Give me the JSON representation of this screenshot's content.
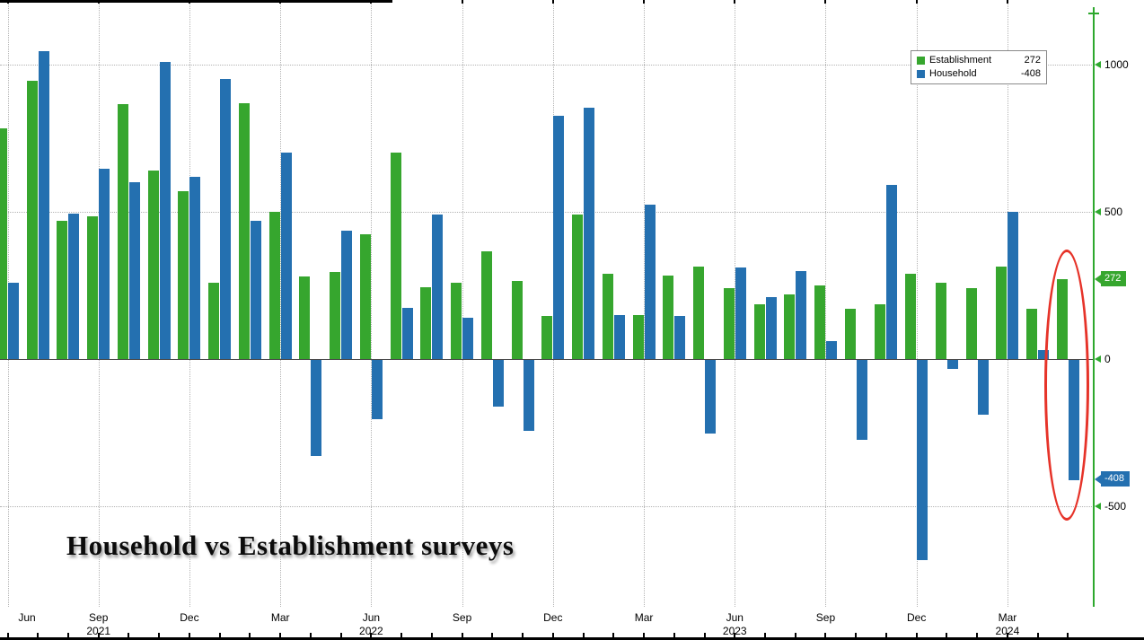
{
  "title": "Household vs Establishment surveys",
  "colors": {
    "establishment": "#36a62e",
    "household": "#2470b0",
    "axis": "#2da82d",
    "grid": "#b3b3b3",
    "highlight": "#e63329"
  },
  "legend": {
    "items": [
      {
        "label": "Establishment",
        "value": "272",
        "series": "establishment"
      },
      {
        "label": "Household",
        "value": "-408",
        "series": "household"
      }
    ]
  },
  "y_axis": {
    "ticks": [
      {
        "label": "1000",
        "value": 1000
      },
      {
        "label": "500",
        "value": 500
      },
      {
        "label": "0",
        "value": 0
      },
      {
        "label": "-500",
        "value": -500
      }
    ],
    "badges": [
      {
        "label": "272",
        "value": 272,
        "series": "establishment"
      },
      {
        "label": "-408",
        "value": -408,
        "series": "household"
      }
    ]
  },
  "x_axis": {
    "ticks": [
      {
        "index": 0,
        "label": "Jun"
      },
      {
        "index": 3,
        "label": "Sep",
        "year": "2021"
      },
      {
        "index": 6,
        "label": "Dec"
      },
      {
        "index": 9,
        "label": "Mar"
      },
      {
        "index": 12,
        "label": "Jun",
        "year": "2022"
      },
      {
        "index": 15,
        "label": "Sep"
      },
      {
        "index": 18,
        "label": "Dec"
      },
      {
        "index": 21,
        "label": "Mar"
      },
      {
        "index": 24,
        "label": "Jun",
        "year": "2023"
      },
      {
        "index": 27,
        "label": "Sep"
      },
      {
        "index": 30,
        "label": "Dec"
      },
      {
        "index": 33,
        "label": "Mar",
        "year": "2024"
      }
    ]
  },
  "chart_data": {
    "type": "bar",
    "title": "Household vs Establishment surveys",
    "categories": [
      "Jun 2021",
      "Jul 2021",
      "Aug 2021",
      "Sep 2021",
      "Oct 2021",
      "Nov 2021",
      "Dec 2021",
      "Jan 2022",
      "Feb 2022",
      "Mar 2022",
      "Apr 2022",
      "May 2022",
      "Jun 2022",
      "Jul 2022",
      "Aug 2022",
      "Sep 2022",
      "Oct 2022",
      "Nov 2022",
      "Dec 2022",
      "Jan 2023",
      "Feb 2023",
      "Mar 2023",
      "Apr 2023",
      "May 2023",
      "Jun 2023",
      "Jul 2023",
      "Aug 2023",
      "Sep 2023",
      "Oct 2023",
      "Nov 2023",
      "Dec 2023",
      "Jan 2024",
      "Feb 2024",
      "Mar 2024",
      "Apr 2024",
      "May 2024"
    ],
    "series": [
      {
        "name": "Establishment",
        "color": "#36a62e",
        "values": [
          785,
          945,
          470,
          485,
          865,
          640,
          570,
          260,
          870,
          500,
          280,
          295,
          425,
          700,
          245,
          260,
          365,
          265,
          145,
          490,
          290,
          150,
          285,
          315,
          240,
          185,
          220,
          250,
          170,
          185,
          290,
          260,
          240,
          315,
          170,
          272
        ]
      },
      {
        "name": "Household",
        "color": "#2470b0",
        "values": [
          260,
          1045,
          495,
          645,
          600,
          1010,
          620,
          950,
          470,
          700,
          -325,
          435,
          -200,
          175,
          490,
          140,
          -160,
          -240,
          825,
          855,
          150,
          525,
          145,
          -250,
          310,
          210,
          300,
          60,
          -270,
          590,
          -680,
          -30,
          -185,
          500,
          30,
          -408
        ]
      }
    ],
    "xlabel": "",
    "ylabel": "",
    "ylim": [
      -850,
      1220
    ],
    "y_ticks": [
      1000,
      500,
      0,
      -500
    ],
    "grid": true,
    "legend_position": "top-right",
    "highlighted_category": "May 2024"
  }
}
